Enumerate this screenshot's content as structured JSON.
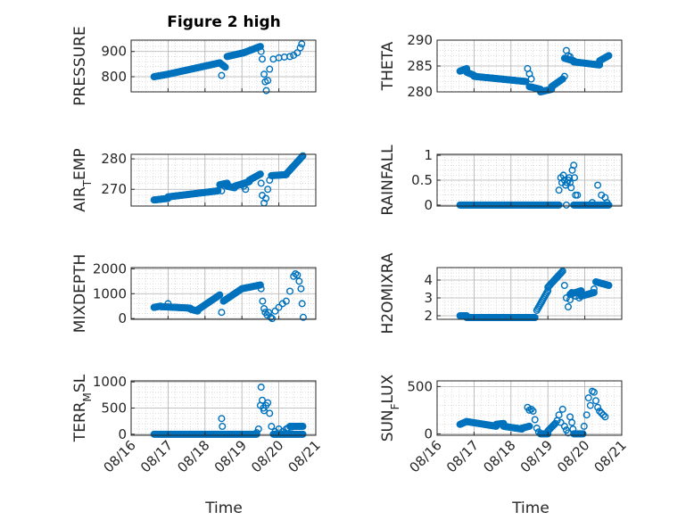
{
  "figure_title": "Figure 2 high",
  "marker_color": "#0072BD",
  "x_axis": {
    "label": "Time",
    "ticks": [
      "08/16",
      "08/17",
      "08/18",
      "08/19",
      "08/20",
      "08/21"
    ]
  },
  "chart_data": [
    {
      "type": "scatter",
      "ylabel": "PRESSURE",
      "title": "Figure 2 high",
      "xlim": [
        0,
        5
      ],
      "ylim": [
        740,
        945
      ],
      "yticks": [
        800,
        900
      ],
      "grid": true,
      "segments": [
        [
          0.62,
          1.0,
          800,
          810
        ],
        [
          1.0,
          2.4,
          810,
          855
        ],
        [
          2.4,
          2.55,
          855,
          838
        ],
        [
          2.6,
          3.05,
          880,
          895
        ],
        [
          3.05,
          3.5,
          895,
          920
        ]
      ],
      "points": [
        [
          2.45,
          805
        ],
        [
          3.52,
          900
        ],
        [
          3.55,
          870
        ],
        [
          3.6,
          810
        ],
        [
          3.63,
          780
        ],
        [
          3.66,
          745
        ],
        [
          3.7,
          785
        ],
        [
          3.75,
          830
        ],
        [
          3.85,
          870
        ],
        [
          4.0,
          875
        ],
        [
          4.15,
          878
        ],
        [
          4.3,
          880
        ],
        [
          4.4,
          885
        ],
        [
          4.5,
          895
        ],
        [
          4.58,
          915
        ],
        [
          4.62,
          930
        ]
      ]
    },
    {
      "type": "scatter",
      "ylabel": "THETA",
      "xlim": [
        0,
        5
      ],
      "ylim": [
        280,
        290
      ],
      "yticks": [
        280,
        285,
        290
      ],
      "grid": true,
      "segments": [
        [
          0.62,
          0.8,
          284,
          284.5
        ],
        [
          0.8,
          1.0,
          283.8,
          283.2
        ],
        [
          1.0,
          2.4,
          283,
          282
        ],
        [
          2.5,
          2.8,
          281,
          280.5
        ],
        [
          2.8,
          3.1,
          280,
          280.5
        ],
        [
          3.1,
          3.4,
          281,
          282.5
        ],
        [
          3.45,
          3.7,
          286.5,
          286
        ],
        [
          3.7,
          4.4,
          285.8,
          285.2
        ],
        [
          4.4,
          4.65,
          286,
          287
        ]
      ],
      "points": [
        [
          2.45,
          284.5
        ],
        [
          2.5,
          283.5
        ],
        [
          2.55,
          282.5
        ],
        [
          3.45,
          283
        ],
        [
          3.5,
          288
        ],
        [
          3.55,
          287
        ],
        [
          3.6,
          286.8
        ]
      ]
    },
    {
      "type": "scatter",
      "ylabel": "AIR_TEMP",
      "xlim": [
        0,
        5
      ],
      "ylim": [
        264.5,
        281.5
      ],
      "yticks": [
        270,
        280
      ],
      "grid": true,
      "segments": [
        [
          0.62,
          1.0,
          266.5,
          267
        ],
        [
          1.0,
          2.35,
          267.5,
          269.5
        ],
        [
          2.4,
          2.6,
          271.5,
          272
        ],
        [
          2.6,
          2.8,
          271,
          270.5
        ],
        [
          2.8,
          3.2,
          271,
          272.5
        ],
        [
          3.2,
          3.5,
          273,
          275
        ],
        [
          3.8,
          4.2,
          274.5,
          274.8
        ],
        [
          4.2,
          4.65,
          275,
          281
        ]
      ],
      "points": [
        [
          2.45,
          269.5
        ],
        [
          3.05,
          271
        ],
        [
          3.1,
          270
        ],
        [
          3.52,
          272
        ],
        [
          3.55,
          268
        ],
        [
          3.6,
          265.5
        ],
        [
          3.65,
          267
        ],
        [
          3.7,
          270
        ],
        [
          3.75,
          273
        ]
      ]
    },
    {
      "type": "scatter",
      "ylabel": "RAINFALL",
      "xlim": [
        0,
        5
      ],
      "ylim": [
        -0.02,
        1.02
      ],
      "yticks": [
        0,
        0.5,
        1
      ],
      "grid": true,
      "segments": [
        [
          0.62,
          3.3,
          0,
          0
        ],
        [
          3.7,
          4.65,
          0,
          0
        ]
      ],
      "points": [
        [
          3.3,
          0.3
        ],
        [
          3.35,
          0.55
        ],
        [
          3.38,
          0.45
        ],
        [
          3.42,
          0.6
        ],
        [
          3.45,
          0.5
        ],
        [
          3.48,
          0.4
        ],
        [
          3.5,
          0.0
        ],
        [
          3.52,
          0.45
        ],
        [
          3.55,
          0.5
        ],
        [
          3.58,
          0.55
        ],
        [
          3.6,
          0.45
        ],
        [
          3.63,
          0.35
        ],
        [
          3.66,
          0.7
        ],
        [
          3.7,
          0.8
        ],
        [
          3.72,
          0.55
        ],
        [
          3.75,
          0.2
        ],
        [
          3.8,
          0.2
        ],
        [
          4.0,
          0.0
        ],
        [
          4.2,
          0.05
        ],
        [
          4.35,
          0.4
        ],
        [
          4.45,
          0.2
        ],
        [
          4.55,
          0.15
        ],
        [
          4.6,
          0.05
        ]
      ]
    },
    {
      "type": "scatter",
      "ylabel": "MIXDEPTH",
      "xlim": [
        0,
        5
      ],
      "ylim": [
        -30,
        2050
      ],
      "yticks": [
        0,
        1000,
        2000
      ],
      "grid": true,
      "segments": [
        [
          0.62,
          0.8,
          450,
          500
        ],
        [
          0.8,
          1.6,
          480,
          420
        ],
        [
          1.6,
          1.8,
          380,
          300
        ],
        [
          1.8,
          2.4,
          350,
          950
        ],
        [
          2.5,
          3.0,
          700,
          1200
        ],
        [
          3.0,
          3.5,
          1200,
          1350
        ]
      ],
      "points": [
        [
          1.0,
          600
        ],
        [
          2.45,
          250
        ],
        [
          3.52,
          1200
        ],
        [
          3.56,
          700
        ],
        [
          3.6,
          400
        ],
        [
          3.63,
          250
        ],
        [
          3.68,
          150
        ],
        [
          3.72,
          250
        ],
        [
          3.78,
          50
        ],
        [
          3.82,
          0
        ],
        [
          3.9,
          300
        ],
        [
          4.0,
          450
        ],
        [
          4.1,
          600
        ],
        [
          4.2,
          700
        ],
        [
          4.3,
          1100
        ],
        [
          4.4,
          1700
        ],
        [
          4.45,
          1800
        ],
        [
          4.5,
          1750
        ],
        [
          4.55,
          1500
        ],
        [
          4.6,
          1200
        ],
        [
          4.63,
          600
        ],
        [
          4.66,
          50
        ]
      ]
    },
    {
      "type": "scatter",
      "ylabel": "H2OMIXRA",
      "xlim": [
        0,
        5
      ],
      "ylim": [
        1.8,
        4.7
      ],
      "yticks": [
        2,
        3,
        4
      ],
      "grid": true,
      "segments": [
        [
          0.62,
          0.8,
          2.0,
          2.0
        ],
        [
          0.8,
          2.65,
          1.9,
          1.9
        ],
        [
          2.7,
          3.0,
          2.3,
          3.4
        ],
        [
          3.0,
          3.4,
          3.6,
          4.5
        ],
        [
          3.6,
          3.9,
          3.2,
          3.4
        ],
        [
          3.9,
          4.25,
          3.1,
          3.3
        ],
        [
          4.3,
          4.65,
          3.9,
          3.7
        ]
      ],
      "points": [
        [
          3.45,
          3.7
        ],
        [
          3.5,
          3.0
        ],
        [
          3.55,
          2.5
        ],
        [
          3.6,
          2.9
        ],
        [
          3.65,
          3.3
        ],
        [
          3.75,
          3.1
        ],
        [
          3.85,
          3.0
        ],
        [
          4.25,
          3.5
        ]
      ]
    },
    {
      "type": "scatter",
      "ylabel": "TERR_MSL",
      "xlim": [
        0,
        5
      ],
      "ylim": [
        -20,
        1020
      ],
      "yticks": [
        0,
        500,
        1000
      ],
      "grid": true,
      "segments": [
        [
          0.62,
          3.4,
          0,
          0
        ],
        [
          3.85,
          4.65,
          0,
          0
        ],
        [
          4.3,
          4.65,
          150,
          150
        ]
      ],
      "points": [
        [
          2.45,
          300
        ],
        [
          2.47,
          150
        ],
        [
          3.4,
          30
        ],
        [
          3.45,
          100
        ],
        [
          3.5,
          550
        ],
        [
          3.52,
          900
        ],
        [
          3.55,
          650
        ],
        [
          3.58,
          500
        ],
        [
          3.6,
          450
        ],
        [
          3.65,
          550
        ],
        [
          3.7,
          600
        ],
        [
          3.75,
          400
        ],
        [
          3.8,
          150
        ],
        [
          3.9,
          50
        ],
        [
          4.0,
          100
        ],
        [
          4.1,
          50
        ],
        [
          4.2,
          100
        ],
        [
          4.25,
          120
        ],
        [
          4.35,
          140
        ]
      ]
    },
    {
      "type": "scatter",
      "ylabel": "SUN_FLUX",
      "xlim": [
        0,
        5
      ],
      "ylim": [
        -15,
        560
      ],
      "yticks": [
        0,
        500
      ],
      "grid": true,
      "segments": [
        [
          0.62,
          0.8,
          100,
          130
        ],
        [
          0.8,
          1.6,
          130,
          80
        ],
        [
          1.6,
          1.8,
          100,
          110
        ],
        [
          1.8,
          2.3,
          80,
          50
        ],
        [
          2.3,
          2.5,
          60,
          80
        ],
        [
          2.8,
          3.0,
          0,
          0
        ],
        [
          3.0,
          3.2,
          30,
          110
        ],
        [
          3.7,
          3.95,
          0,
          0
        ]
      ],
      "points": [
        [
          2.45,
          280
        ],
        [
          2.5,
          250
        ],
        [
          2.55,
          260
        ],
        [
          2.6,
          240
        ],
        [
          2.65,
          150
        ],
        [
          2.7,
          60
        ],
        [
          2.75,
          20
        ],
        [
          3.25,
          140
        ],
        [
          3.3,
          200
        ],
        [
          3.35,
          120
        ],
        [
          3.4,
          260
        ],
        [
          3.45,
          80
        ],
        [
          3.5,
          40
        ],
        [
          3.55,
          10
        ],
        [
          3.6,
          180
        ],
        [
          3.65,
          120
        ],
        [
          3.68,
          50
        ],
        [
          3.98,
          80
        ],
        [
          4.05,
          200
        ],
        [
          4.1,
          380
        ],
        [
          4.15,
          300
        ],
        [
          4.2,
          450
        ],
        [
          4.25,
          440
        ],
        [
          4.3,
          350
        ],
        [
          4.35,
          280
        ],
        [
          4.4,
          240
        ],
        [
          4.45,
          220
        ],
        [
          4.5,
          200
        ],
        [
          4.55,
          180
        ]
      ]
    }
  ]
}
